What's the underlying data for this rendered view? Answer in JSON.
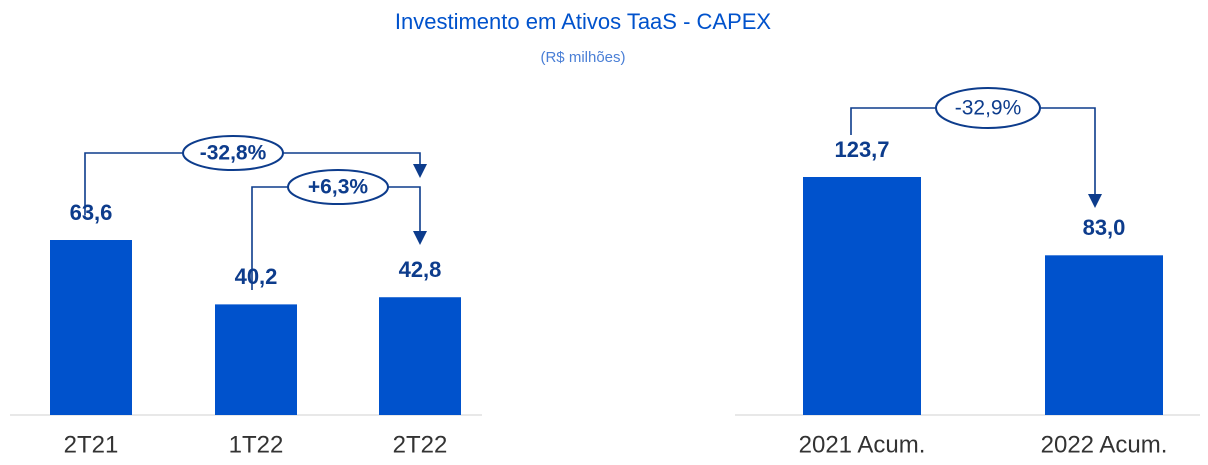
{
  "title": "Investimento em Ativos TaaS - CAPEX",
  "subtitle": "(R$ milhões)",
  "chart_data": [
    {
      "type": "bar",
      "categories": [
        "2T21",
        "1T22",
        "2T22"
      ],
      "values": [
        63.6,
        40.2,
        42.8
      ],
      "value_labels": [
        "63,6",
        "40,2",
        "42,8"
      ],
      "color": "#0052cc",
      "annotations": [
        "-32,8%",
        "+6,3%"
      ]
    },
    {
      "type": "bar",
      "categories": [
        "2021 Acum.",
        "2022 Acum."
      ],
      "values": [
        123.7,
        83.0
      ],
      "value_labels": [
        "123,7",
        "83,0"
      ],
      "color": "#0052cc",
      "annotations": [
        "-32,9%"
      ]
    }
  ]
}
